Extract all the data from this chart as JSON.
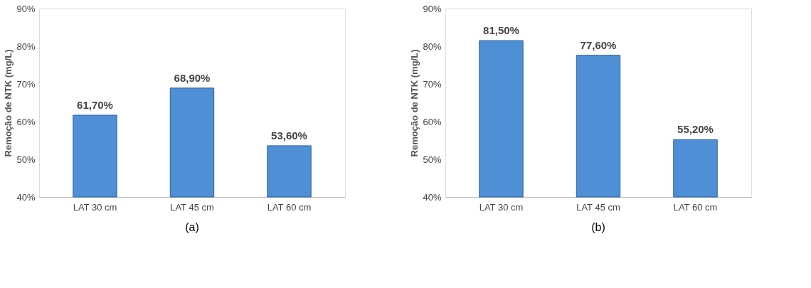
{
  "chart_data": [
    {
      "type": "bar",
      "ylabel": "Remoção de NTK (mg/L)",
      "categories": [
        "LAT 30 cm",
        "LAT 45 cm",
        "LAT 60 cm"
      ],
      "values": [
        61.7,
        68.9,
        53.6
      ],
      "value_labels": [
        "61,70%",
        "68,90%",
        "53,60%"
      ],
      "color": "#4f8fd6",
      "ylim": [
        40,
        90
      ],
      "yticks": [
        {
          "value": 40,
          "label": "40%"
        },
        {
          "value": 50,
          "label": "50%"
        },
        {
          "value": 60,
          "label": "60%"
        },
        {
          "value": 70,
          "label": "70%"
        },
        {
          "value": 80,
          "label": "80%"
        },
        {
          "value": 90,
          "label": "90%"
        }
      ],
      "grid": false,
      "annotations": [
        "(a)"
      ]
    },
    {
      "type": "bar",
      "ylabel": "Remoção de NTK (mg/L)",
      "categories": [
        "LAT 30 cm",
        "LAT 45 cm",
        "LAT 60 cm"
      ],
      "values": [
        81.5,
        77.6,
        55.2
      ],
      "value_labels": [
        "81,50%",
        "77,60%",
        "55,20%"
      ],
      "color": "#4f8fd6",
      "ylim": [
        40,
        90
      ],
      "yticks": [
        {
          "value": 40,
          "label": "40%"
        },
        {
          "value": 50,
          "label": "50%"
        },
        {
          "value": 60,
          "label": "60%"
        },
        {
          "value": 70,
          "label": "70%"
        },
        {
          "value": 80,
          "label": "80%"
        },
        {
          "value": 90,
          "label": "90%"
        }
      ],
      "grid": false,
      "annotations": [
        "(b)"
      ]
    }
  ]
}
